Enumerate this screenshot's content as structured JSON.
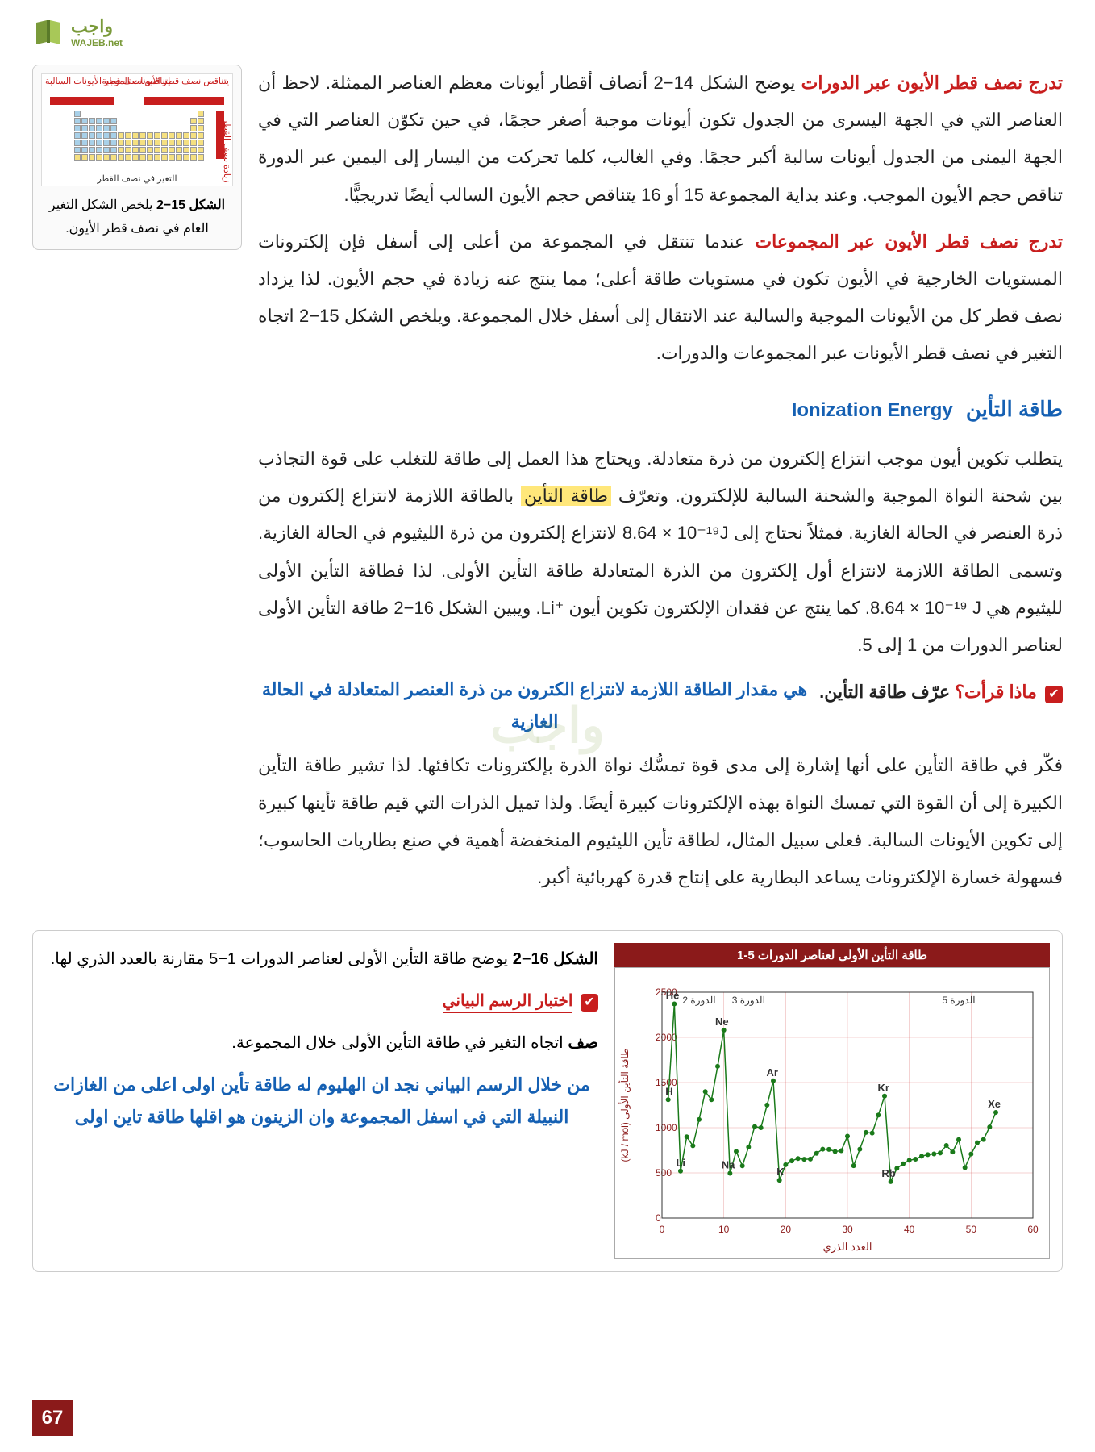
{
  "logo": {
    "main": "واجب",
    "sub": "WAJEB.net"
  },
  "para1": {
    "heading": "تدرج نصف قطر الأيون عبر الدورات",
    "text": " يوضح الشكل 14−2 أنصاف أقطار أيونات معظم العناصر الممثلة. لاحظ أن العناصر التي في الجهة اليسرى من الجدول تكون أيونات موجبة أصغر حجمًا، في حين تكوّن العناصر التي في الجهة اليمنى من الجدول أيونات سالبة أكبر حجمًا. وفي الغالب، كلما تحركت من اليسار إلى اليمين عبر الدورة تناقص حجم الأيون الموجب. وعند بداية المجموعة 15 أو 16 يتناقص حجم الأيون السالب أيضًا تدريجيًّا."
  },
  "para2": {
    "heading": "تدرج نصف قطر الأيون عبر المجموعات",
    "text": " عندما تنتقل في المجموعة من أعلى إلى أسفل فإن إلكترونات المستويات الخارجية في الأيون تكون في مستويات طاقة أعلى؛ مما ينتج عنه زيادة في حجم الأيون. لذا يزداد نصف قطر كل من الأيونات الموجبة والسالبة عند الانتقال إلى أسفل خلال المجموعة. ويلخص الشكل 15−2 اتجاه التغير في نصف قطر الأيونات عبر المجموعات والدورات."
  },
  "ionization_heading": {
    "ar": "طاقة التأين",
    "en": "Ionization Energy"
  },
  "para3": {
    "text1": "يتطلب تكوين أيون موجب انتزاع إلكترون من ذرة متعادلة. ويحتاج هذا العمل إلى طاقة للتغلب على قوة التجاذب بين شحنة النواة الموجبة والشحنة السالبة للإلكترون. وتعرّف ",
    "highlight": "طاقة التأين",
    "text2": " بالطاقة اللازمة لانتزاع إلكترون من ذرة العنصر في الحالة الغازية. فمثلاً نحتاج إلى ",
    "formula1": "8.64 × 10⁻¹⁹J",
    "text3": " لانتزاع إلكترون من ذرة الليثيوم في الحالة الغازية. وتسمى الطاقة اللازمة لانتزاع أول إلكترون من الذرة المتعادلة طاقة التأين الأولى. لذا فطاقة التأين الأولى لليثيوم هي ",
    "formula2": "8.64 × 10⁻¹⁹ J",
    "text4": ". كما ينتج عن فقدان الإلكترون تكوين أيون ⁺Li. ويبين الشكل 16−2 طاقة التأين الأولى لعناصر الدورات من 1 إلى 5."
  },
  "check_reading": {
    "label": "ماذا قرأت؟",
    "prompt": "عرّف طاقة التأين."
  },
  "annotation1": "هي مقدار الطاقة اللازمة لانتزاع الكترون من ذرة العنصر المتعادلة في الحالة الغازية",
  "para4": "فكّر في طاقة التأين على أنها إشارة إلى مدى قوة تمسُّك نواة الذرة بإلكترونات تكافئها. لذا تشير طاقة التأين الكبيرة إلى أن القوة التي تمسك النواة بهذه الإلكترونات كبيرة أيضًا. ولذا تميل الذرات التي قيم طاقة تأينها كبيرة إلى تكوين الأيونات السالبة. فعلى سبيل المثال، لطاقة تأين الليثيوم المنخفضة أهمية في صنع بطاريات الحاسوب؛ فسهولة خسارة الإلكترونات يساعد البطارية على إنتاج قدرة كهربائية أكبر.",
  "sidebar": {
    "label_top_right": "يتناقص نصف قطر الأيونات الموجبة",
    "label_top_left": "يتناقص نصف قطر الأيونات السالبة",
    "label_side": "زيادة نصف القطر",
    "label_bottom": "التغير في نصف القطر",
    "caption_bold": "الشكل 15−2",
    "caption_text": " يلخص الشكل التغير العام في نصف قطر الأيون."
  },
  "chart": {
    "title": "طاقة التأين الأولى لعناصر الدورات 5-1",
    "ylabel": "طاقة التأين الأولى (kJ / mol)",
    "xlabel": "العدد الذري",
    "xlim": [
      0,
      60
    ],
    "ylim": [
      0,
      2500
    ],
    "xticks": [
      0,
      10,
      20,
      30,
      40,
      50,
      60
    ],
    "yticks": [
      0,
      500,
      1000,
      1500,
      2000,
      2500
    ],
    "periods": [
      "الدورة 2",
      "الدورة 3",
      "",
      "",
      "الدورة 5"
    ],
    "period_x": [
      6,
      14,
      0,
      0,
      48
    ],
    "labeled_points": {
      "He": [
        2,
        2370
      ],
      "H": [
        1,
        1310
      ],
      "Li": [
        3,
        520
      ],
      "Ne": [
        10,
        2080
      ],
      "Na": [
        11,
        496
      ],
      "Ar": [
        18,
        1520
      ],
      "K": [
        19,
        419
      ],
      "Kr": [
        36,
        1350
      ],
      "Rb": [
        37,
        403
      ],
      "Xe": [
        54,
        1170
      ]
    },
    "series_color": "#1a7a1a",
    "grid_color": "#c81e1e",
    "background": "#ffffff",
    "data": [
      [
        1,
        1310
      ],
      [
        2,
        2370
      ],
      [
        3,
        520
      ],
      [
        4,
        900
      ],
      [
        5,
        800
      ],
      [
        6,
        1090
      ],
      [
        7,
        1400
      ],
      [
        8,
        1310
      ],
      [
        9,
        1680
      ],
      [
        10,
        2080
      ],
      [
        11,
        496
      ],
      [
        12,
        738
      ],
      [
        13,
        578
      ],
      [
        14,
        786
      ],
      [
        15,
        1012
      ],
      [
        16,
        1000
      ],
      [
        17,
        1251
      ],
      [
        18,
        1520
      ],
      [
        19,
        419
      ],
      [
        20,
        590
      ],
      [
        21,
        633
      ],
      [
        22,
        659
      ],
      [
        23,
        651
      ],
      [
        24,
        653
      ],
      [
        25,
        717
      ],
      [
        26,
        762
      ],
      [
        27,
        760
      ],
      [
        28,
        737
      ],
      [
        29,
        746
      ],
      [
        30,
        906
      ],
      [
        31,
        579
      ],
      [
        32,
        762
      ],
      [
        33,
        947
      ],
      [
        34,
        941
      ],
      [
        35,
        1140
      ],
      [
        36,
        1350
      ],
      [
        37,
        403
      ],
      [
        38,
        550
      ],
      [
        39,
        600
      ],
      [
        40,
        640
      ],
      [
        41,
        652
      ],
      [
        42,
        684
      ],
      [
        43,
        702
      ],
      [
        44,
        710
      ],
      [
        45,
        720
      ],
      [
        46,
        804
      ],
      [
        47,
        731
      ],
      [
        48,
        868
      ],
      [
        49,
        558
      ],
      [
        50,
        709
      ],
      [
        51,
        834
      ],
      [
        52,
        869
      ],
      [
        53,
        1008
      ],
      [
        54,
        1170
      ]
    ]
  },
  "fig16": {
    "caption_bold": "الشكل 16−2",
    "caption_text": " يوضح طاقة التأين الأولى لعناصر الدورات 1−5 مقارنة بالعدد الذري لها.",
    "check_label": "اختبار الرسم البياني",
    "prompt_bold": "صف",
    "prompt_text": " اتجاه التغير في طاقة التأين الأولى خلال المجموعة."
  },
  "annotation2": "من خلال الرسم البياني نجد ان الهليوم له طاقة تأين اولى اعلى من الغازات النبيلة التي في اسفل المجموعة وان الزينون هو اقلها طاقة تاين اولى",
  "page_number": "67",
  "watermark": "واجب"
}
